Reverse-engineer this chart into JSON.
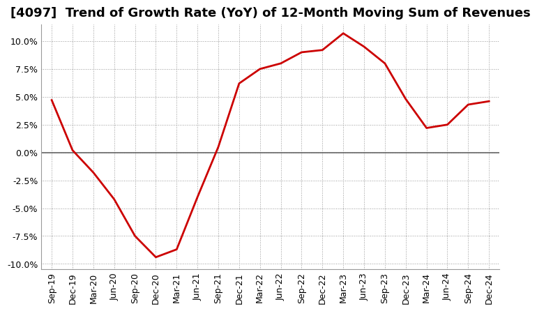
{
  "title": "[4097]  Trend of Growth Rate (YoY) of 12-Month Moving Sum of Revenues",
  "x_labels": [
    "Sep-19",
    "Dec-19",
    "Mar-20",
    "Jun-20",
    "Sep-20",
    "Dec-20",
    "Mar-21",
    "Jun-21",
    "Sep-21",
    "Dec-21",
    "Mar-22",
    "Jun-22",
    "Sep-22",
    "Dec-22",
    "Mar-23",
    "Jun-23",
    "Sep-23",
    "Dec-23",
    "Mar-24",
    "Jun-24",
    "Sep-24",
    "Dec-24"
  ],
  "y_values": [
    4.7,
    0.2,
    -1.8,
    -4.2,
    -7.5,
    -9.4,
    -8.7,
    -4.0,
    0.5,
    6.2,
    7.5,
    8.0,
    9.0,
    9.2,
    10.7,
    9.5,
    8.0,
    4.8,
    2.2,
    2.5,
    4.3,
    4.6
  ],
  "line_color": "#cc0000",
  "background_color": "#ffffff",
  "plot_bg_color": "#ffffff",
  "grid_color": "#999999",
  "zero_line_color": "#666666",
  "ylim": [
    -10.5,
    11.5
  ],
  "yticks": [
    -10.0,
    -7.5,
    -5.0,
    -2.5,
    0.0,
    2.5,
    5.0,
    7.5,
    10.0
  ],
  "title_fontsize": 13,
  "tick_fontsize": 9,
  "line_width": 2.0
}
